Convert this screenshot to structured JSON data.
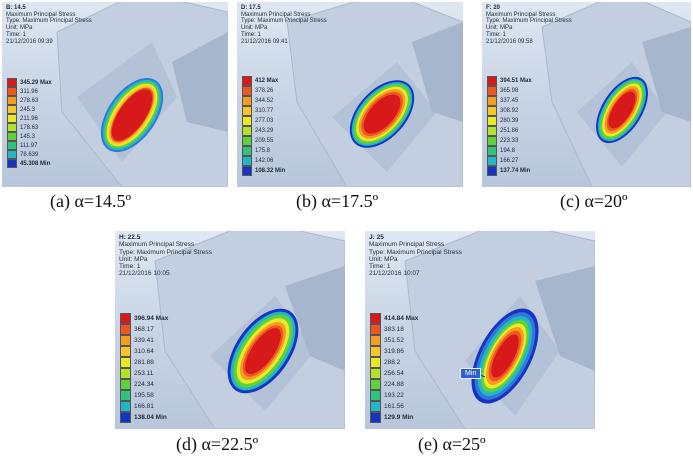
{
  "panels": [
    {
      "id": "a",
      "header": {
        "title": "B: 14.5",
        "line1": "Maximum Principal Stress",
        "line2": "Type: Maximum Principal Stress",
        "line3": "Unit: MPa",
        "line4": "Time: 1",
        "line5": "21/12/2016 09:39"
      },
      "legend": {
        "max": "345.29 Max",
        "levels": [
          "311.96",
          "278.63",
          "245.3",
          "211.96",
          "178.63",
          "145.3",
          "111.97",
          "78.639"
        ],
        "min": "45.308 Min"
      },
      "caption": "(a) α=14.5º"
    },
    {
      "id": "b",
      "header": {
        "title": "D: 17.5",
        "line1": "Maximum Principal Stress",
        "line2": "Type: Maximum Principal Stress",
        "line3": "Unit: MPa",
        "line4": "Time: 1",
        "line5": "21/12/2016 09:41"
      },
      "legend": {
        "max": "412 Max",
        "levels": [
          "378.26",
          "344.52",
          "310.77",
          "277.03",
          "243.29",
          "209.55",
          "175.8",
          "142.06"
        ],
        "min": "108.32 Min"
      },
      "caption": "(b) α=17.5º"
    },
    {
      "id": "c",
      "header": {
        "title": "F: 20",
        "line1": "Maximum Principal Stress",
        "line2": "Type: Maximum Principal Stress",
        "line3": "Unit: MPa",
        "line4": "Time: 1",
        "line5": "21/12/2016 09:58"
      },
      "legend": {
        "max": "394.51 Max",
        "levels": [
          "365.98",
          "337.45",
          "308.92",
          "280.39",
          "251.86",
          "223.33",
          "194.8",
          "166.27"
        ],
        "min": "137.74 Min"
      },
      "caption": "(c) α=20º"
    },
    {
      "id": "d",
      "header": {
        "title": "H: 22.5",
        "line1": "Maximum Principal Stress",
        "line2": "Type: Maximum Principal Stress",
        "line3": "Unit: MPa",
        "line4": "Time: 1",
        "line5": "21/12/2016 10:05"
      },
      "legend": {
        "max": "396.94 Max",
        "levels": [
          "368.17",
          "339.41",
          "310.64",
          "281.88",
          "253.11",
          "224.34",
          "195.58",
          "166.81"
        ],
        "min": "138.04 Min"
      },
      "caption": "(d) α=22.5º"
    },
    {
      "id": "e",
      "header": {
        "title": "J: 25",
        "line1": "Maximum Principal Stress",
        "line2": "Type: Maximum Principal Stress",
        "line3": "Unit: MPa",
        "line4": "Time: 1",
        "line5": "21/12/2016 10:07"
      },
      "legend": {
        "max": "414.84 Max",
        "levels": [
          "383.18",
          "351.52",
          "319.86",
          "288.2",
          "256.54",
          "224.88",
          "193.22",
          "161.56"
        ],
        "min": "129.9 Min"
      },
      "probe": "Min",
      "caption": "(e) α=25º"
    }
  ],
  "colors": {
    "scale": [
      "#d7191c",
      "#f0561f",
      "#f59d22",
      "#f5c62b",
      "#e9ea27",
      "#b4e12a",
      "#5fd13a",
      "#2fc47c",
      "#23b6c6",
      "#2f79d8",
      "#1633c4"
    ],
    "part": "#b7c6da"
  }
}
